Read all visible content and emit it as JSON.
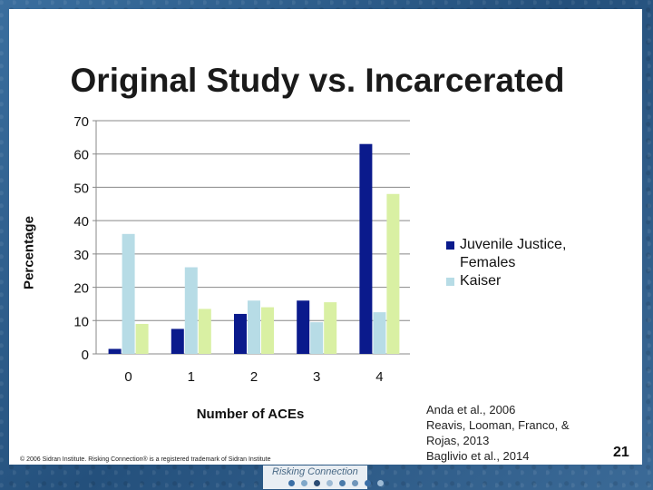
{
  "slide": {
    "title": "Original Study vs. Incarcerated",
    "page_number": "21",
    "copyright": "© 2006 Sidran Institute. Risking Connection® is a registered trademark of Sidran Institute",
    "references": [
      "Anda et al., 2006",
      "Reavis, Looman, Franco, &",
      "Rojas, 2013",
      "Baglivio et al., 2014"
    ],
    "logo_text": "Risking Connection"
  },
  "colors": {
    "navy": "#0a1a8c",
    "lightblue": "#b7dce6",
    "lightgreen": "#d9f0a3"
  },
  "chart_data": {
    "type": "bar",
    "title": "Original Study vs. Incarcerated",
    "xlabel": "Number of ACEs",
    "ylabel": "Percentage",
    "categories": [
      "0",
      "1",
      "2",
      "3",
      "4"
    ],
    "ylim": [
      0,
      70
    ],
    "yticks": [
      0,
      10,
      20,
      30,
      40,
      50,
      60,
      70
    ],
    "grid": true,
    "legend_position": "right",
    "series": [
      {
        "name": "Juvenile Justice, Females",
        "color": "#0a1a8c",
        "values": [
          1.5,
          7.5,
          12,
          16,
          63
        ]
      },
      {
        "name": "Kaiser",
        "color": "#b7dce6",
        "values": [
          36,
          26,
          16,
          9.5,
          12.5
        ]
      },
      {
        "name": "",
        "color": "#d9f0a3",
        "values": [
          9,
          13.5,
          14,
          15.5,
          48
        ]
      }
    ]
  }
}
